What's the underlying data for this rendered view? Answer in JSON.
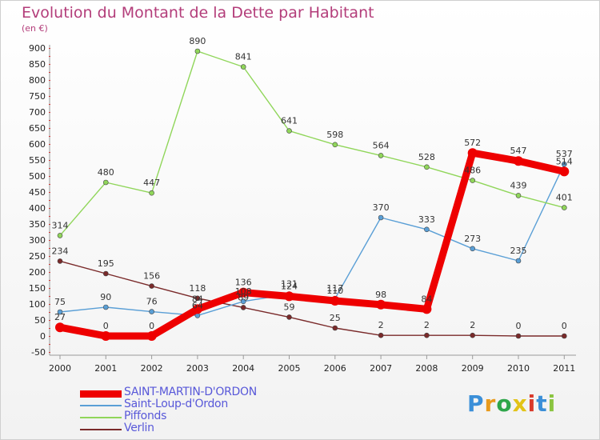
{
  "title": "Evolution du Montant de la Dette par Habitant",
  "unit": "(en €)",
  "chart_data": {
    "type": "line",
    "x": [
      "2000",
      "2001",
      "2002",
      "2003",
      "2004",
      "2005",
      "2006",
      "2007",
      "2008",
      "2009",
      "2010",
      "2011"
    ],
    "ylim": [
      -50,
      900
    ],
    "yticks": [
      -50,
      0,
      50,
      100,
      150,
      200,
      250,
      300,
      350,
      400,
      450,
      500,
      550,
      600,
      650,
      700,
      750,
      800,
      850,
      900
    ],
    "grid": false,
    "legend_position": "bottom-left",
    "series": [
      {
        "name": "SAINT-MARTIN-D'ORDON",
        "color": "#ee0000",
        "emphasis": true,
        "values": [
          27,
          0,
          0,
          84,
          136,
          124,
          110,
          98,
          84,
          572,
          547,
          514
        ]
      },
      {
        "name": "Saint-Loup-d'Ordon",
        "color": "#5a9fd6",
        "emphasis": false,
        "values": [
          75,
          90,
          76,
          64,
          108,
          131,
          117,
          370,
          333,
          273,
          235,
          537
        ]
      },
      {
        "name": "Piffonds",
        "color": "#90d65a",
        "emphasis": false,
        "values": [
          314,
          480,
          447,
          890,
          841,
          641,
          598,
          564,
          528,
          486,
          439,
          401
        ]
      },
      {
        "name": "Verlin",
        "color": "#7a2a2a",
        "emphasis": false,
        "values": [
          234,
          195,
          156,
          118,
          89,
          59,
          25,
          2,
          2,
          2,
          0,
          0
        ]
      }
    ]
  },
  "logo": {
    "letters": [
      "P",
      "r",
      "o",
      "x",
      "i",
      "t",
      "i"
    ],
    "colors": [
      "#3b8fd8",
      "#e89a1c",
      "#2ea64a",
      "#e2c317",
      "#d93a2b",
      "#3b8fd8",
      "#8ac440"
    ]
  }
}
